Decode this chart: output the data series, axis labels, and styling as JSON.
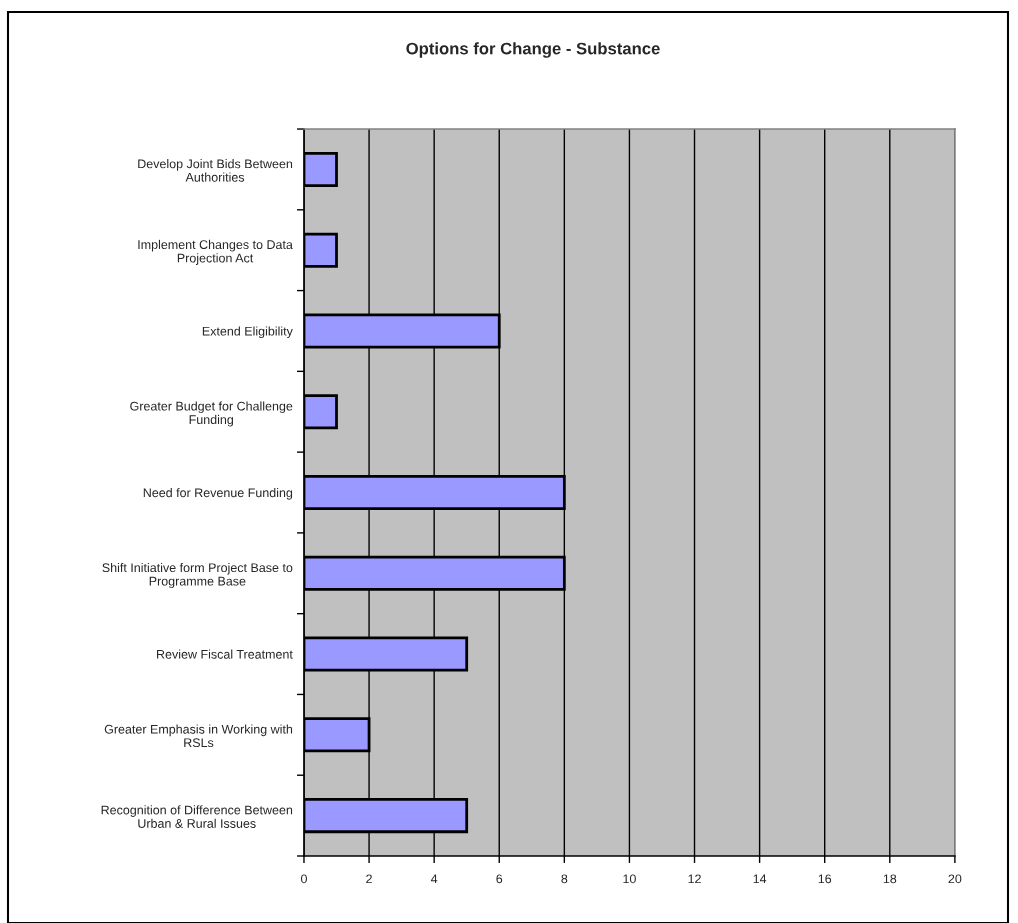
{
  "chart_data": {
    "type": "bar",
    "orientation": "horizontal",
    "title": "Options for Change - Substance",
    "categories": [
      "Develop Joint Bids Between\nAuthorities",
      "Implement Changes to Data\nProjection Act",
      "Extend Eligibility",
      "Greater Budget for Challenge\nFunding",
      "Need for Revenue Funding",
      "Shift Initiative form Project Base to\nProgramme Base",
      "Review Fiscal Treatment",
      "Greater Emphasis in Working with\nRSLs",
      "Recognition of Difference Between\nUrban & Rural Issues"
    ],
    "values": [
      1,
      1,
      6,
      1,
      8,
      8,
      5,
      2,
      5
    ],
    "color": "#9999ff",
    "xlim": [
      0,
      20
    ],
    "xticks": [
      0,
      2,
      4,
      6,
      8,
      10,
      12,
      14,
      16,
      18,
      20
    ],
    "grid": "x"
  }
}
